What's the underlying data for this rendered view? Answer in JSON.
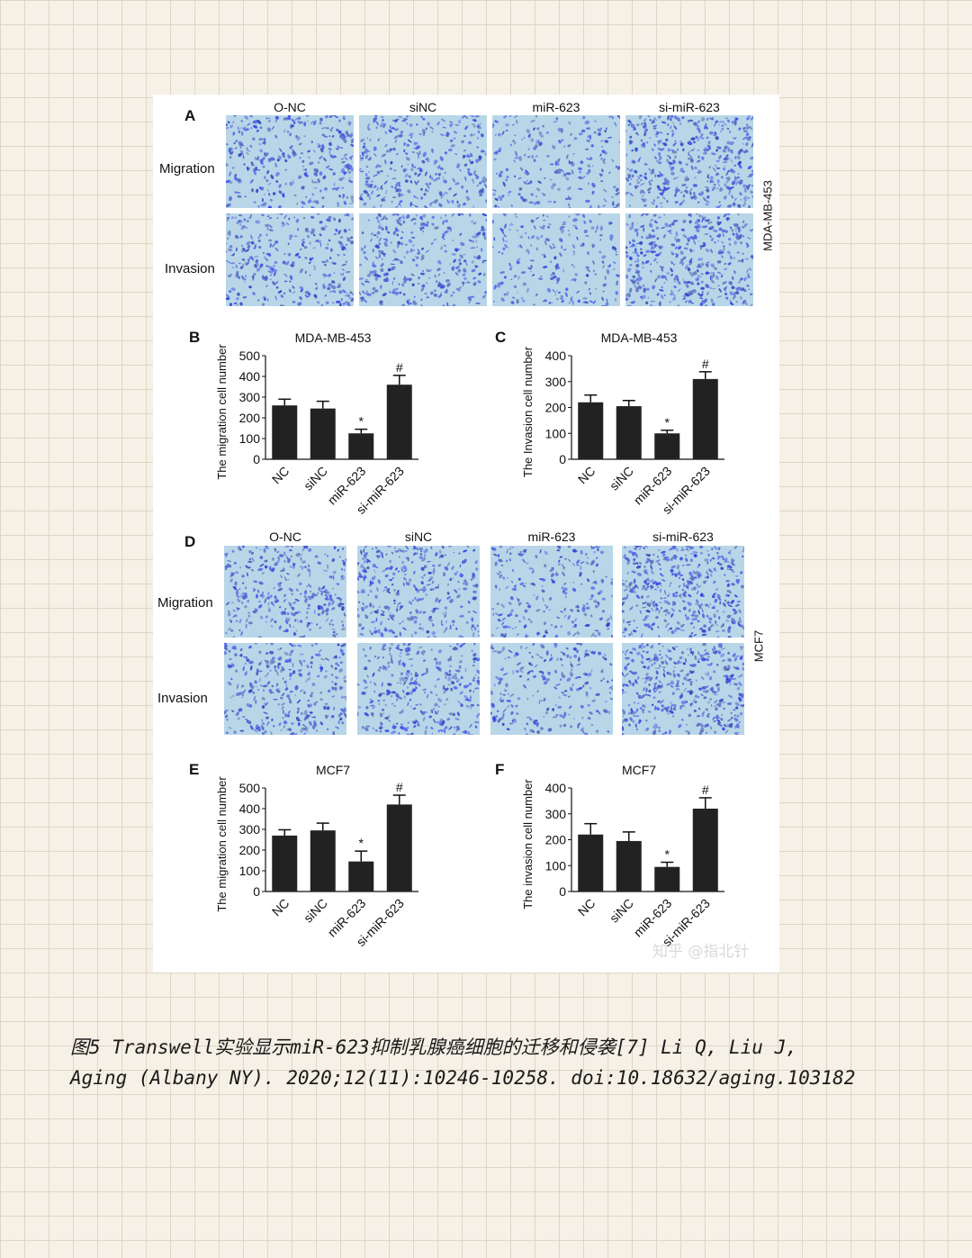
{
  "figure": {
    "panel_A": {
      "label": "A",
      "columns": [
        "O-NC",
        "siNC",
        "miR-623",
        "si-miR-623"
      ],
      "rows": [
        "Migration",
        "Invasion"
      ],
      "cell_line": "MDA-MB-453"
    },
    "panel_D": {
      "label": "D",
      "columns": [
        "O-NC",
        "siNC",
        "miR-623",
        "si-miR-623"
      ],
      "rows": [
        "Migration",
        "Invasion"
      ],
      "cell_line": "MCF7"
    }
  },
  "chart_data": [
    {
      "id": "B",
      "panel_label": "B",
      "type": "bar",
      "title": "MDA-MB-453",
      "ylabel": "The migration cell number",
      "categories": [
        "NC",
        "siNC",
        "miR-623",
        "si-miR-623"
      ],
      "values": [
        260,
        245,
        125,
        360
      ],
      "errors": [
        30,
        35,
        20,
        45
      ],
      "annotations": [
        "",
        "",
        "*",
        "#"
      ],
      "ylim": [
        0,
        500
      ],
      "yticks": [
        0,
        100,
        200,
        300,
        400,
        500
      ]
    },
    {
      "id": "C",
      "panel_label": "C",
      "type": "bar",
      "title": "MDA-MB-453",
      "ylabel": "The Invasion cell number",
      "categories": [
        "NC",
        "siNC",
        "miR-623",
        "si-miR-623"
      ],
      "values": [
        220,
        205,
        100,
        310
      ],
      "errors": [
        28,
        22,
        12,
        28
      ],
      "annotations": [
        "",
        "",
        "*",
        "#"
      ],
      "ylim": [
        0,
        400
      ],
      "yticks": [
        0,
        100,
        200,
        300,
        400
      ]
    },
    {
      "id": "E",
      "panel_label": "E",
      "type": "bar",
      "title": "MCF7",
      "ylabel": "The migration cell number",
      "categories": [
        "NC",
        "siNC",
        "miR-623",
        "si-miR-623"
      ],
      "values": [
        270,
        295,
        145,
        420
      ],
      "errors": [
        28,
        35,
        50,
        45
      ],
      "annotations": [
        "",
        "",
        "*",
        "#"
      ],
      "ylim": [
        0,
        500
      ],
      "yticks": [
        0,
        100,
        200,
        300,
        400,
        500
      ]
    },
    {
      "id": "F",
      "panel_label": "F",
      "type": "bar",
      "title": "MCF7",
      "ylabel": "The invasion cell number",
      "categories": [
        "NC",
        "siNC",
        "miR-623",
        "si-miR-623"
      ],
      "values": [
        220,
        195,
        95,
        320
      ],
      "errors": [
        42,
        35,
        18,
        42
      ],
      "annotations": [
        "",
        "",
        "*",
        "#"
      ],
      "ylim": [
        0,
        400
      ],
      "yticks": [
        0,
        100,
        200,
        300,
        400
      ]
    }
  ],
  "watermark": "知乎 @指北针",
  "caption": {
    "line1": "图5 Transwell实验显示miR-623抑制乳腺癌细胞的迁移和侵袭[7] Li Q, Liu J,",
    "line2": "Aging (Albany NY). 2020;12(11):10246-10258. doi:10.18632/aging.103182"
  },
  "colors": {
    "bar": "#222222",
    "stain": "#3a4fc4",
    "field": "#b8d6e8"
  }
}
